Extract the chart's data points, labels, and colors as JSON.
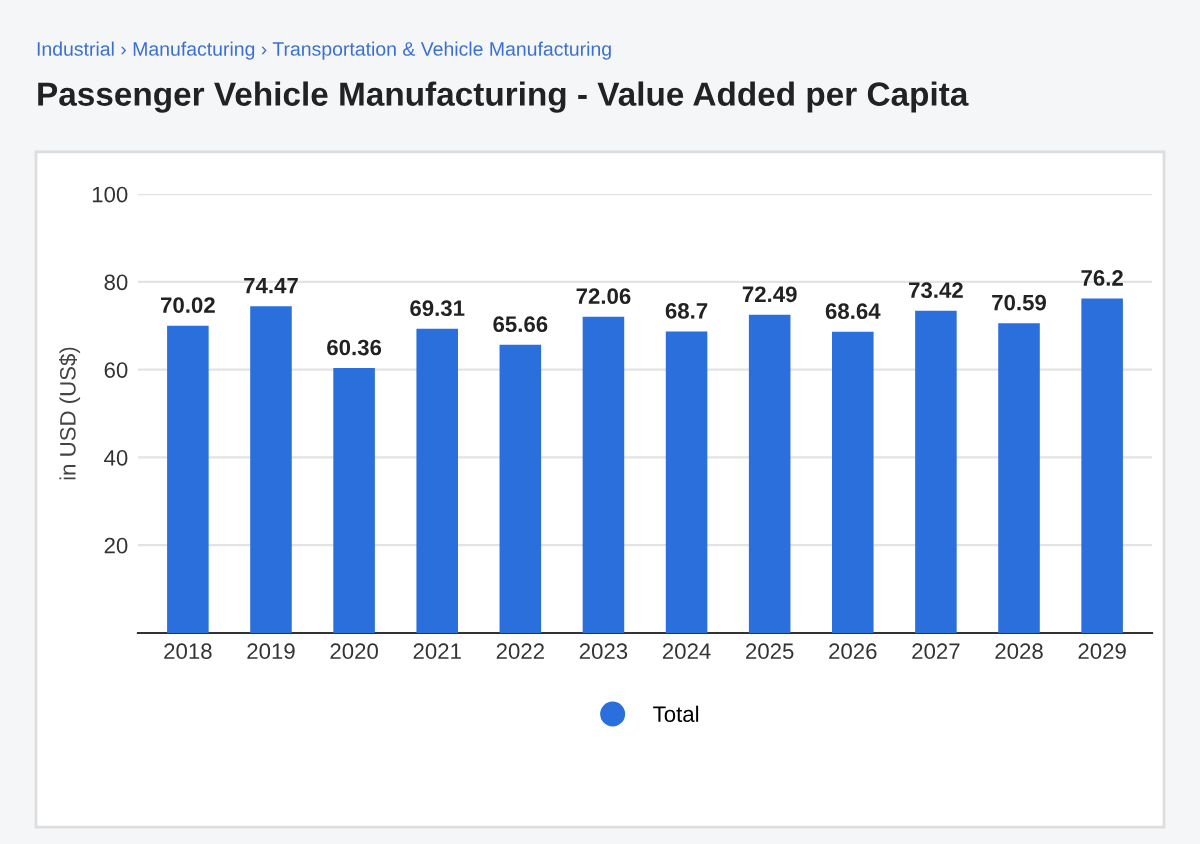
{
  "chart_data": {
    "type": "bar",
    "title": "Passenger Vehicle Manufacturing - Value Added per Capita",
    "subtitle": "Industrial › Manufacturing › Transportation & Vehicle Manufacturing",
    "ylabel": "in USD (US$)",
    "categories": [
      "2018",
      "2019",
      "2020",
      "2021",
      "2022",
      "2023",
      "2024",
      "2025",
      "2026",
      "2027",
      "2028",
      "2029"
    ],
    "series": [
      {
        "name": "Total",
        "color": "#2a6fdb",
        "values": [
          70.02,
          74.47,
          60.36,
          69.31,
          65.66,
          72.06,
          68.7,
          72.49,
          68.64,
          73.42,
          70.59,
          76.2
        ]
      }
    ],
    "ylim": [
      0,
      100
    ],
    "yticks": [
      {
        "value": 0,
        "label": null
      },
      20,
      40,
      60,
      80,
      100
    ],
    "grid": "y",
    "legend": "bottom",
    "data_labels": true
  }
}
